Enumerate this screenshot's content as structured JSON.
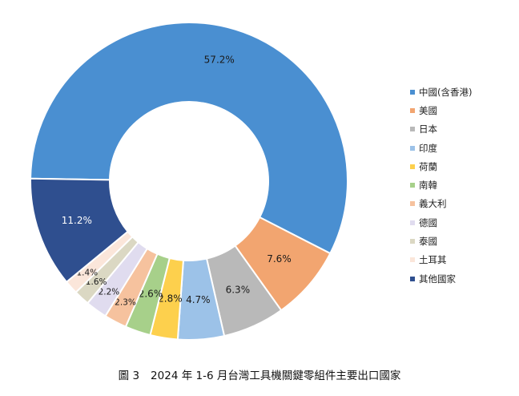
{
  "caption": {
    "figure_label": "圖 3",
    "text": "2024 年 1-6 月台灣工具機關鍵零組件主要出口國家"
  },
  "chart_data": {
    "type": "pie",
    "donut": true,
    "legend_position": "right",
    "categories": [
      "中國(含香港)",
      "美國",
      "日本",
      "印度",
      "荷蘭",
      "南韓",
      "義大利",
      "德國",
      "泰國",
      "土耳其",
      "其他國家"
    ],
    "values": [
      57.2,
      7.6,
      6.3,
      4.7,
      2.8,
      2.6,
      2.3,
      2.2,
      1.6,
      1.4,
      11.2
    ],
    "data_labels": [
      "57.2%",
      "7.6%",
      "6.3%",
      "4.7%",
      "2.8%",
      "2.6%",
      "2.3%",
      "2.2%",
      "1.6%",
      "1.4%",
      "11.2%"
    ],
    "colors": [
      "#4a8fd1",
      "#f2a570",
      "#b9b9b9",
      "#9cc2e8",
      "#fdd04d",
      "#a7d08a",
      "#f6c29e",
      "#e0dcef",
      "#dbd8c3",
      "#fbe6da",
      "#2f4f8f"
    ],
    "label_colors": [
      "#1a1a1a",
      "#1a1a1a",
      "#1a1a1a",
      "#1a1a1a",
      "#1a1a1a",
      "#1a1a1a",
      "#1a1a1a",
      "#1a1a1a",
      "#1a1a1a",
      "#1a1a1a",
      "#ffffff"
    ]
  }
}
